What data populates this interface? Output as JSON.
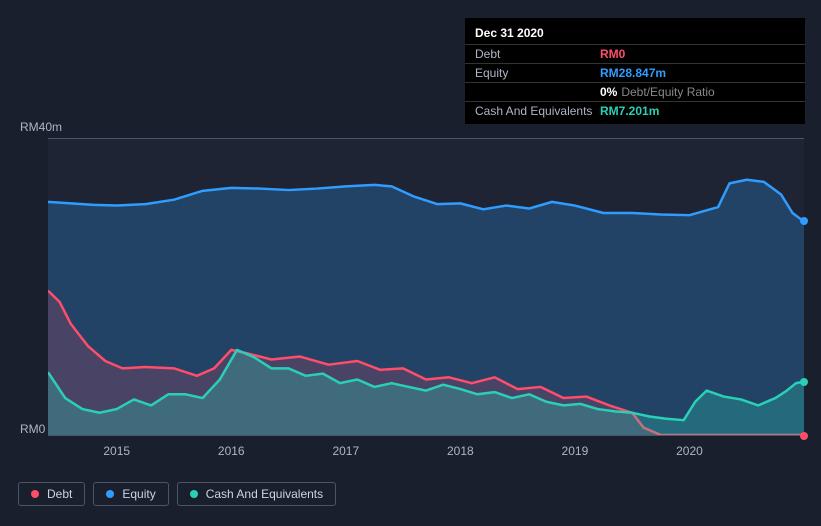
{
  "tooltip": {
    "date": "Dec 31 2020",
    "rows": [
      {
        "label": "Debt",
        "value": "RM0",
        "cls": "debt"
      },
      {
        "label": "Equity",
        "value": "RM28.847m",
        "cls": "equity"
      }
    ],
    "ratio": {
      "pct": "0%",
      "label": "Debt/Equity Ratio"
    },
    "cash_row": {
      "label": "Cash And Equivalents",
      "value": "RM7.201m",
      "cls": "cash"
    }
  },
  "chart": {
    "type": "area",
    "background_color": "#1e2433",
    "page_bg": "#1a1f2e",
    "grid_color": "#4a5568",
    "text_color": "#aeb5c4",
    "ylim": [
      0,
      40
    ],
    "y_unit_prefix": "RM",
    "y_unit_suffix": "m",
    "y_top_label": "RM40m",
    "y_bottom_label": "RM0",
    "x_ticks": [
      "2015",
      "2016",
      "2017",
      "2018",
      "2019",
      "2020"
    ],
    "x_range": [
      2014.4,
      2021.0
    ],
    "line_width": 2.5,
    "series": [
      {
        "name": "Equity",
        "color": "#2f9dff",
        "fill_opacity": 0.25,
        "data": [
          [
            2014.4,
            31.5
          ],
          [
            2014.6,
            31.3
          ],
          [
            2014.8,
            31.1
          ],
          [
            2015.0,
            31.0
          ],
          [
            2015.25,
            31.2
          ],
          [
            2015.5,
            31.8
          ],
          [
            2015.75,
            33.0
          ],
          [
            2016.0,
            33.4
          ],
          [
            2016.25,
            33.3
          ],
          [
            2016.5,
            33.1
          ],
          [
            2016.75,
            33.3
          ],
          [
            2017.0,
            33.6
          ],
          [
            2017.25,
            33.8
          ],
          [
            2017.4,
            33.6
          ],
          [
            2017.6,
            32.2
          ],
          [
            2017.8,
            31.2
          ],
          [
            2018.0,
            31.3
          ],
          [
            2018.2,
            30.5
          ],
          [
            2018.4,
            31.0
          ],
          [
            2018.6,
            30.6
          ],
          [
            2018.8,
            31.5
          ],
          [
            2019.0,
            31.0
          ],
          [
            2019.25,
            30.0
          ],
          [
            2019.5,
            30.0
          ],
          [
            2019.75,
            29.8
          ],
          [
            2020.0,
            29.7
          ],
          [
            2020.25,
            30.8
          ],
          [
            2020.35,
            34.0
          ],
          [
            2020.5,
            34.5
          ],
          [
            2020.65,
            34.2
          ],
          [
            2020.8,
            32.5
          ],
          [
            2020.9,
            30.0
          ],
          [
            2021.0,
            28.847
          ]
        ]
      },
      {
        "name": "Debt",
        "color": "#ff4d6a",
        "fill_opacity": 0.18,
        "data": [
          [
            2014.4,
            19.5
          ],
          [
            2014.5,
            18.0
          ],
          [
            2014.6,
            15.0
          ],
          [
            2014.75,
            12.0
          ],
          [
            2014.9,
            10.0
          ],
          [
            2015.05,
            9.0
          ],
          [
            2015.25,
            9.2
          ],
          [
            2015.5,
            9.0
          ],
          [
            2015.7,
            8.0
          ],
          [
            2015.85,
            9.0
          ],
          [
            2016.0,
            11.5
          ],
          [
            2016.15,
            11.0
          ],
          [
            2016.35,
            10.2
          ],
          [
            2016.6,
            10.6
          ],
          [
            2016.85,
            9.5
          ],
          [
            2017.1,
            10.0
          ],
          [
            2017.3,
            8.8
          ],
          [
            2017.5,
            9.0
          ],
          [
            2017.7,
            7.5
          ],
          [
            2017.9,
            7.8
          ],
          [
            2018.1,
            7.0
          ],
          [
            2018.3,
            7.8
          ],
          [
            2018.5,
            6.2
          ],
          [
            2018.7,
            6.5
          ],
          [
            2018.9,
            5.0
          ],
          [
            2019.1,
            5.2
          ],
          [
            2019.3,
            4.0
          ],
          [
            2019.5,
            3.0
          ],
          [
            2019.6,
            1.0
          ],
          [
            2019.75,
            0.0
          ],
          [
            2020.0,
            0.0
          ],
          [
            2020.5,
            0.0
          ],
          [
            2021.0,
            0.0
          ]
        ]
      },
      {
        "name": "Cash And Equivalents",
        "color": "#2ad0b6",
        "fill_opacity": 0.28,
        "data": [
          [
            2014.4,
            8.5
          ],
          [
            2014.55,
            5.0
          ],
          [
            2014.7,
            3.5
          ],
          [
            2014.85,
            3.0
          ],
          [
            2015.0,
            3.5
          ],
          [
            2015.15,
            4.8
          ],
          [
            2015.3,
            4.0
          ],
          [
            2015.45,
            5.5
          ],
          [
            2015.6,
            5.5
          ],
          [
            2015.75,
            5.0
          ],
          [
            2015.9,
            7.5
          ],
          [
            2016.05,
            11.5
          ],
          [
            2016.2,
            10.5
          ],
          [
            2016.35,
            9.0
          ],
          [
            2016.5,
            9.0
          ],
          [
            2016.65,
            8.0
          ],
          [
            2016.8,
            8.3
          ],
          [
            2016.95,
            7.0
          ],
          [
            2017.1,
            7.5
          ],
          [
            2017.25,
            6.5
          ],
          [
            2017.4,
            7.0
          ],
          [
            2017.55,
            6.5
          ],
          [
            2017.7,
            6.0
          ],
          [
            2017.85,
            6.8
          ],
          [
            2018.0,
            6.2
          ],
          [
            2018.15,
            5.5
          ],
          [
            2018.3,
            5.8
          ],
          [
            2018.45,
            5.0
          ],
          [
            2018.6,
            5.5
          ],
          [
            2018.75,
            4.5
          ],
          [
            2018.9,
            4.0
          ],
          [
            2019.05,
            4.2
          ],
          [
            2019.2,
            3.5
          ],
          [
            2019.35,
            3.2
          ],
          [
            2019.5,
            3.0
          ],
          [
            2019.65,
            2.5
          ],
          [
            2019.8,
            2.2
          ],
          [
            2019.95,
            2.0
          ],
          [
            2020.05,
            4.5
          ],
          [
            2020.15,
            6.0
          ],
          [
            2020.3,
            5.2
          ],
          [
            2020.45,
            4.8
          ],
          [
            2020.6,
            4.0
          ],
          [
            2020.75,
            5.0
          ],
          [
            2020.85,
            6.0
          ],
          [
            2020.93,
            7.0
          ],
          [
            2021.0,
            7.201
          ]
        ]
      }
    ],
    "end_markers": [
      {
        "series": "Equity",
        "x": 2021.0,
        "y": 28.847,
        "color": "#2f9dff"
      },
      {
        "series": "Debt",
        "x": 2021.0,
        "y": 0.0,
        "color": "#ff4d6a"
      },
      {
        "series": "Cash And Equivalents",
        "x": 2021.0,
        "y": 7.201,
        "color": "#2ad0b6"
      }
    ]
  },
  "legend": [
    {
      "label": "Debt",
      "color": "#ff4d6a"
    },
    {
      "label": "Equity",
      "color": "#2f9dff"
    },
    {
      "label": "Cash And Equivalents",
      "color": "#2ad0b6"
    }
  ]
}
